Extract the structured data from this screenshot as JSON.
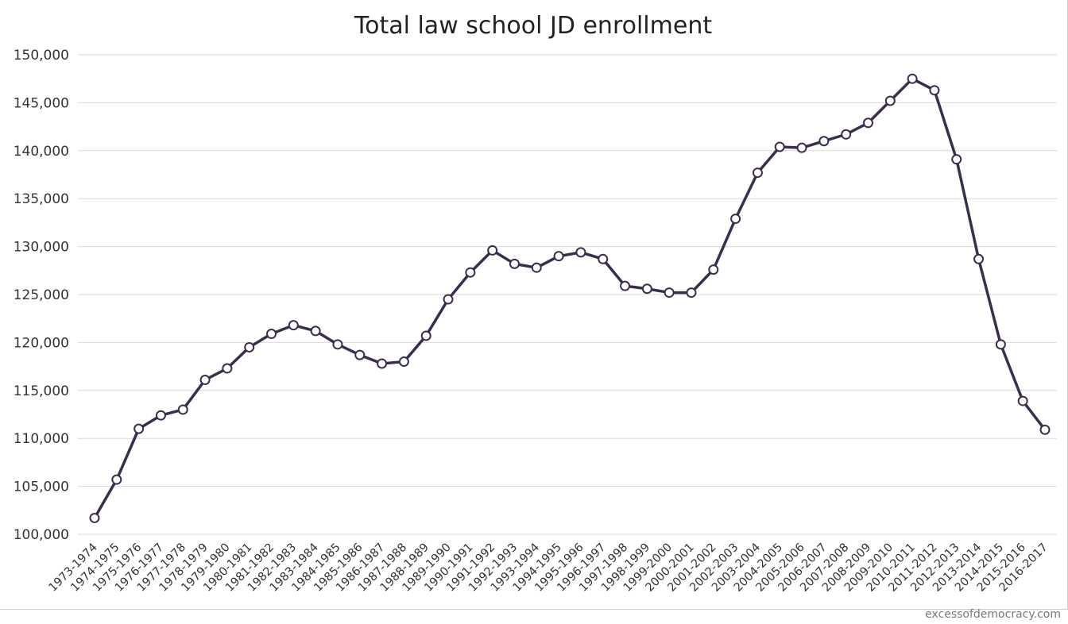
{
  "credit": "excessofdemocracy.com",
  "chart_data": {
    "type": "line",
    "title": "Total law school JD enrollment",
    "xlabel": "",
    "ylabel": "",
    "ylim": [
      100000,
      150000
    ],
    "y_ticks": [
      100000,
      105000,
      110000,
      115000,
      120000,
      125000,
      130000,
      135000,
      140000,
      145000,
      150000
    ],
    "y_tick_labels": [
      "100,000",
      "105,000",
      "110,000",
      "115,000",
      "120,000",
      "125,000",
      "130,000",
      "135,000",
      "140,000",
      "145,000",
      "150,000"
    ],
    "grid": "horizontal",
    "legend": "none",
    "line_color": "#3b2d4d",
    "marker_fill": "#ffffff",
    "categories": [
      "1973-1974",
      "1974-1975",
      "1975-1976",
      "1976-1977",
      "1977-1978",
      "1978-1979",
      "1979-1980",
      "1980-1981",
      "1981-1982",
      "1982-1983",
      "1983-1984",
      "1984-1985",
      "1985-1986",
      "1986-1987",
      "1987-1988",
      "1988-1989",
      "1989-1990",
      "1990-1991",
      "1991-1992",
      "1992-1993",
      "1993-1994",
      "1994-1995",
      "1995-1996",
      "1996-1997",
      "1997-1998",
      "1998-1999",
      "1999-2000",
      "2000-2001",
      "2001-2002",
      "2002-2003",
      "2003-2004",
      "2004-2005",
      "2005-2006",
      "2006-2007",
      "2007-2008",
      "2008-2009",
      "2009-2010",
      "2010-2011",
      "2011-2012",
      "2012-2013",
      "2013-2014",
      "2014-2015",
      "2015-2016",
      "2016-2017"
    ],
    "series": [
      {
        "values": [
          101700,
          105700,
          111000,
          112400,
          113000,
          116100,
          117300,
          119500,
          120900,
          121800,
          121200,
          119800,
          118700,
          117800,
          118000,
          120700,
          124500,
          127300,
          129600,
          128200,
          127800,
          129000,
          129400,
          128700,
          125900,
          125600,
          125200,
          125200,
          127600,
          132900,
          137700,
          140400,
          140300,
          141000,
          141700,
          142900,
          145200,
          147500,
          146300,
          139100,
          128700,
          119800,
          113900,
          110900
        ]
      }
    ]
  }
}
